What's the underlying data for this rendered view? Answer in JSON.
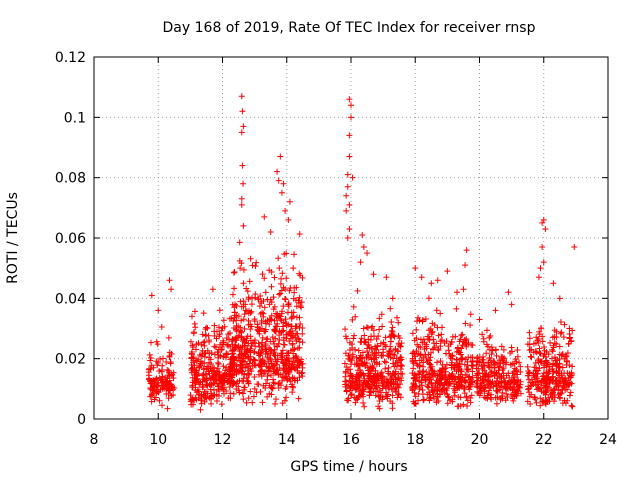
{
  "chart_data": {
    "type": "scatter",
    "title": "Day 168 of 2019, Rate Of TEC Index for receiver rnsp",
    "xlabel": "GPS time / hours",
    "ylabel": "ROTI / TECUs",
    "xlim": [
      8,
      24
    ],
    "ylim": [
      0,
      0.12
    ],
    "grid": true,
    "marker": "+",
    "series_color": "#ff0000",
    "xticks": [
      8,
      10,
      12,
      14,
      16,
      18,
      20,
      22,
      24
    ],
    "xtick_labels": [
      "8",
      "10",
      "12",
      "14",
      "16",
      "18",
      "20",
      "22",
      "24"
    ],
    "yticks": [
      0,
      0.02,
      0.04,
      0.06,
      0.08,
      0.1,
      0.12
    ],
    "ytick_labels": [
      "0",
      "0.02",
      "0.04",
      "0.06",
      "0.08",
      "0.1",
      "0.12"
    ],
    "clusters": [
      {
        "x_start": 9.7,
        "x_end": 10.5,
        "y_min": 0.003,
        "y_median": 0.012,
        "y_spread": 0.006,
        "n": 130
      },
      {
        "x_start": 11.0,
        "x_end": 12.3,
        "y_min": 0.003,
        "y_median": 0.015,
        "y_spread": 0.009,
        "n": 320
      },
      {
        "x_start": 12.3,
        "x_end": 14.5,
        "y_min": 0.005,
        "y_median": 0.022,
        "y_spread": 0.013,
        "n": 620
      },
      {
        "x_start": 15.8,
        "x_end": 17.6,
        "y_min": 0.003,
        "y_median": 0.015,
        "y_spread": 0.009,
        "n": 420
      },
      {
        "x_start": 17.9,
        "x_end": 19.8,
        "y_min": 0.004,
        "y_median": 0.015,
        "y_spread": 0.009,
        "n": 420
      },
      {
        "x_start": 19.9,
        "x_end": 21.3,
        "y_min": 0.004,
        "y_median": 0.013,
        "y_spread": 0.006,
        "n": 260
      },
      {
        "x_start": 21.5,
        "x_end": 22.9,
        "y_min": 0.004,
        "y_median": 0.014,
        "y_spread": 0.008,
        "n": 300
      }
    ],
    "notable_points": [
      {
        "x": 9.8,
        "y": 0.041
      },
      {
        "x": 10.0,
        "y": 0.036
      },
      {
        "x": 10.35,
        "y": 0.046
      },
      {
        "x": 10.4,
        "y": 0.043
      },
      {
        "x": 11.05,
        "y": 0.034
      },
      {
        "x": 11.7,
        "y": 0.043
      },
      {
        "x": 12.6,
        "y": 0.107
      },
      {
        "x": 12.62,
        "y": 0.102
      },
      {
        "x": 12.65,
        "y": 0.097
      },
      {
        "x": 12.6,
        "y": 0.095
      },
      {
        "x": 12.62,
        "y": 0.084
      },
      {
        "x": 12.64,
        "y": 0.078
      },
      {
        "x": 12.6,
        "y": 0.073
      },
      {
        "x": 12.6,
        "y": 0.071
      },
      {
        "x": 12.65,
        "y": 0.064
      },
      {
        "x": 12.55,
        "y": 0.05
      },
      {
        "x": 13.3,
        "y": 0.067
      },
      {
        "x": 13.5,
        "y": 0.062
      },
      {
        "x": 13.8,
        "y": 0.087
      },
      {
        "x": 13.7,
        "y": 0.082
      },
      {
        "x": 13.75,
        "y": 0.079
      },
      {
        "x": 13.9,
        "y": 0.078
      },
      {
        "x": 13.85,
        "y": 0.075
      },
      {
        "x": 14.1,
        "y": 0.072
      },
      {
        "x": 13.95,
        "y": 0.069
      },
      {
        "x": 14.05,
        "y": 0.066
      },
      {
        "x": 14.2,
        "y": 0.05
      },
      {
        "x": 15.95,
        "y": 0.106
      },
      {
        "x": 16.0,
        "y": 0.104
      },
      {
        "x": 16.0,
        "y": 0.1
      },
      {
        "x": 15.95,
        "y": 0.094
      },
      {
        "x": 15.95,
        "y": 0.087
      },
      {
        "x": 15.9,
        "y": 0.081
      },
      {
        "x": 16.05,
        "y": 0.08
      },
      {
        "x": 15.9,
        "y": 0.077
      },
      {
        "x": 15.85,
        "y": 0.074
      },
      {
        "x": 15.95,
        "y": 0.071
      },
      {
        "x": 15.85,
        "y": 0.069
      },
      {
        "x": 15.95,
        "y": 0.063
      },
      {
        "x": 15.9,
        "y": 0.06
      },
      {
        "x": 16.35,
        "y": 0.061
      },
      {
        "x": 16.4,
        "y": 0.057
      },
      {
        "x": 16.5,
        "y": 0.055
      },
      {
        "x": 16.3,
        "y": 0.052
      },
      {
        "x": 16.7,
        "y": 0.048
      },
      {
        "x": 17.1,
        "y": 0.047
      },
      {
        "x": 17.3,
        "y": 0.04
      },
      {
        "x": 18.0,
        "y": 0.05
      },
      {
        "x": 18.2,
        "y": 0.047
      },
      {
        "x": 18.5,
        "y": 0.045
      },
      {
        "x": 18.7,
        "y": 0.046
      },
      {
        "x": 19.0,
        "y": 0.049
      },
      {
        "x": 19.3,
        "y": 0.042
      },
      {
        "x": 19.6,
        "y": 0.056
      },
      {
        "x": 19.55,
        "y": 0.051
      },
      {
        "x": 19.5,
        "y": 0.043
      },
      {
        "x": 20.0,
        "y": 0.033
      },
      {
        "x": 20.5,
        "y": 0.036
      },
      {
        "x": 20.9,
        "y": 0.042
      },
      {
        "x": 21.0,
        "y": 0.038
      },
      {
        "x": 21.95,
        "y": 0.065
      },
      {
        "x": 22.0,
        "y": 0.066
      },
      {
        "x": 22.05,
        "y": 0.063
      },
      {
        "x": 21.95,
        "y": 0.057
      },
      {
        "x": 22.0,
        "y": 0.052
      },
      {
        "x": 21.9,
        "y": 0.05
      },
      {
        "x": 21.85,
        "y": 0.047
      },
      {
        "x": 22.3,
        "y": 0.045
      },
      {
        "x": 22.5,
        "y": 0.04
      },
      {
        "x": 22.95,
        "y": 0.057
      },
      {
        "x": 22.8,
        "y": 0.03
      }
    ]
  }
}
